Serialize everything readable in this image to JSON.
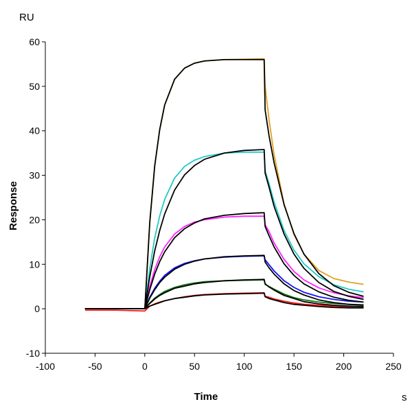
{
  "chart_data": {
    "type": "line",
    "xlabel": "Time",
    "ylabel": "Response",
    "x_unit": "s",
    "y_unit": "RU",
    "xlim": [
      -100,
      250
    ],
    "ylim": [
      -10,
      60
    ],
    "x_ticks": [
      "-100",
      "-50",
      "0",
      "50",
      "100",
      "150",
      "200",
      "250"
    ],
    "y_ticks": [
      "-10",
      "0",
      "10",
      "20",
      "30",
      "40",
      "50",
      "60"
    ],
    "grid": false,
    "legend": "none",
    "x": [
      -60,
      -30,
      0,
      5,
      10,
      15,
      20,
      30,
      40,
      50,
      60,
      80,
      100,
      120,
      121,
      125,
      130,
      140,
      150,
      160,
      175,
      190,
      205,
      220
    ],
    "series": [
      {
        "color": "#e0a020",
        "values": [
          0,
          0,
          0,
          19.4,
          32.1,
          40.3,
          45.8,
          51.6,
          54.1,
          55.2,
          55.7,
          56.0,
          56.1,
          56.2,
          50,
          42.4,
          34.6,
          23.6,
          16.7,
          12.3,
          8.6,
          6.8,
          6.0,
          5.5
        ]
      },
      {
        "color": "#20c8c8",
        "values": [
          0,
          0,
          0,
          9.1,
          15.9,
          20.9,
          24.6,
          29.4,
          32.0,
          33.4,
          34.2,
          35.0,
          35.2,
          35.2,
          31,
          28.1,
          24.0,
          17.6,
          13.2,
          10.1,
          7.2,
          5.4,
          4.4,
          3.8
        ]
      },
      {
        "color": "#ff20ff",
        "values": [
          0,
          0,
          0,
          5.0,
          8.8,
          11.7,
          13.9,
          16.8,
          18.5,
          19.5,
          20.0,
          20.6,
          20.8,
          20.8,
          18.9,
          17.3,
          14.8,
          11.1,
          8.4,
          6.5,
          4.7,
          3.6,
          2.9,
          2.5
        ]
      },
      {
        "color": "#1010ff",
        "values": [
          0,
          0,
          0,
          2.6,
          4.6,
          6.2,
          7.5,
          9.2,
          10.2,
          10.8,
          11.2,
          11.6,
          11.8,
          11.9,
          11,
          9.9,
          8.5,
          6.3,
          4.8,
          3.7,
          2.7,
          2.1,
          1.7,
          1.5
        ]
      },
      {
        "color": "#107010",
        "values": [
          0,
          0,
          0,
          1.3,
          2.4,
          3.2,
          3.9,
          4.8,
          5.4,
          5.8,
          6.1,
          6.3,
          6.4,
          6.5,
          5.5,
          5.0,
          4.4,
          3.3,
          2.5,
          2.0,
          1.5,
          1.2,
          1.0,
          0.9
        ]
      },
      {
        "color": "#ff1010",
        "values": [
          -0.3,
          -0.3,
          -0.5,
          0.6,
          1.1,
          1.5,
          1.8,
          2.3,
          2.7,
          3.0,
          3.2,
          3.4,
          3.5,
          3.6,
          2.8,
          2.6,
          2.2,
          1.7,
          1.3,
          1.0,
          0.8,
          0.6,
          0.5,
          0.5
        ]
      }
    ],
    "fits": [
      {
        "color": "#000000",
        "values": [
          0,
          0,
          0,
          19.4,
          32.1,
          40.3,
          45.8,
          51.6,
          54.1,
          55.2,
          55.7,
          56.0,
          56.0,
          56.0,
          44.7,
          38.8,
          32.8,
          23.4,
          16.9,
          12.3,
          7.9,
          5.2,
          3.7,
          2.8
        ]
      },
      {
        "color": "#000000",
        "values": [
          0,
          0,
          0,
          7.2,
          13.0,
          17.6,
          21.3,
          26.7,
          30.1,
          32.2,
          33.6,
          35.0,
          35.6,
          35.8,
          30.5,
          27.3,
          23.0,
          16.8,
          12.3,
          9.1,
          5.9,
          3.9,
          2.8,
          2.1
        ]
      },
      {
        "color": "#000000",
        "values": [
          0,
          0,
          0,
          4.3,
          7.8,
          10.6,
          12.8,
          16.0,
          18.0,
          19.3,
          20.2,
          21.0,
          21.4,
          21.6,
          18.5,
          16.4,
          13.9,
          10.1,
          7.5,
          5.6,
          3.8,
          2.6,
          1.9,
          1.5
        ]
      },
      {
        "color": "#000000",
        "values": [
          0,
          0,
          0,
          2.4,
          4.3,
          5.9,
          7.1,
          8.9,
          10.0,
          10.7,
          11.2,
          11.7,
          11.9,
          12.0,
          10.5,
          9.2,
          7.8,
          5.6,
          4.1,
          3.1,
          2.0,
          1.4,
          1.0,
          0.8
        ]
      },
      {
        "color": "#000000",
        "values": [
          0,
          0,
          0,
          1.2,
          2.2,
          3.0,
          3.6,
          4.6,
          5.1,
          5.6,
          5.9,
          6.3,
          6.5,
          6.6,
          5.6,
          4.9,
          4.2,
          3.0,
          2.3,
          1.6,
          1.1,
          0.8,
          0.6,
          0.5
        ]
      },
      {
        "color": "#000000",
        "values": [
          0,
          0,
          0,
          0.6,
          1.0,
          1.4,
          1.8,
          2.3,
          2.6,
          2.9,
          3.1,
          3.3,
          3.4,
          3.5,
          2.7,
          2.3,
          2.0,
          1.4,
          1.0,
          0.8,
          0.5,
          0.3,
          0.2,
          0.2
        ]
      }
    ]
  }
}
